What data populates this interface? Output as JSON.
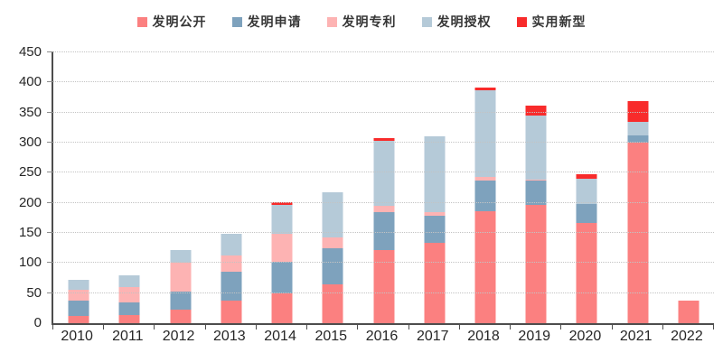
{
  "chart_data": {
    "type": "bar",
    "stacked": true,
    "title": "",
    "xlabel": "",
    "ylabel": "",
    "categories": [
      "2010",
      "2011",
      "2012",
      "2013",
      "2014",
      "2015",
      "2016",
      "2017",
      "2018",
      "2019",
      "2020",
      "2021",
      "2022"
    ],
    "series": [
      {
        "name": "发明公开",
        "color": "#fb8080",
        "values": [
          12,
          14,
          22,
          37,
          50,
          65,
          122,
          134,
          186,
          197,
          167,
          300,
          37
        ]
      },
      {
        "name": "发明申请",
        "color": "#7ea2bd",
        "values": [
          26,
          20,
          30,
          49,
          52,
          60,
          63,
          44,
          51,
          40,
          31,
          12,
          0
        ]
      },
      {
        "name": "发明专利",
        "color": "#fdb3b3",
        "values": [
          18,
          26,
          49,
          26,
          46,
          18,
          10,
          6,
          6,
          2,
          0,
          0,
          0
        ]
      },
      {
        "name": "发明授权",
        "color": "#b5cad8",
        "values": [
          16,
          20,
          21,
          36,
          49,
          75,
          108,
          126,
          144,
          106,
          42,
          23,
          0
        ]
      },
      {
        "name": "实用新型",
        "color": "#f82b2b",
        "values": [
          0,
          0,
          0,
          0,
          4,
          0,
          4,
          0,
          4,
          16,
          8,
          34,
          0
        ]
      }
    ],
    "totals": [
      72,
      80,
      122,
      148,
      201,
      218,
      307,
      310,
      391,
      361,
      248,
      369,
      37
    ],
    "ylim": [
      0,
      450
    ],
    "ytick_step": 50,
    "ytick_labels": [
      "0",
      "50",
      "100",
      "150",
      "200",
      "250",
      "300",
      "350",
      "400",
      "450"
    ],
    "grid": "horizontal-dotted",
    "legend_position": "top-center",
    "axis_color": "#4d4d4d",
    "gridline_color": "#c3c3c3",
    "label_color": "#262626"
  }
}
